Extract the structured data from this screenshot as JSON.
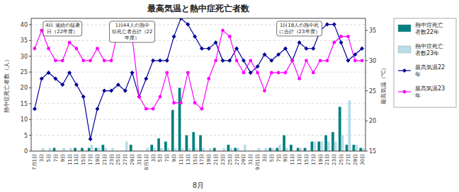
{
  "chart_data": {
    "type": "bar",
    "title": "最高気温と熱中症死亡者数",
    "x_label": "8月",
    "y_label": "熱中症死亡者数（人）",
    "y2_label": "最高気温（℃）",
    "categories": [
      "7月1日",
      "3日",
      "5日",
      "7日",
      "9日",
      "11日",
      "13日",
      "15日",
      "17日",
      "19日",
      "21日",
      "23日",
      "25日",
      "27日",
      "29日",
      "31日",
      "8月1日",
      "3日",
      "5日",
      "7日",
      "9日",
      "11日",
      "13日",
      "15日",
      "17日",
      "19日",
      "21日",
      "23日",
      "25日",
      "27日",
      "29日",
      "31日",
      "9月1日",
      "3日",
      "5日",
      "7日",
      "9日",
      "11日",
      "13日",
      "15日",
      "17日",
      "19日",
      "21日",
      "23日",
      "25日",
      "27日",
      "29日",
      "30日"
    ],
    "series": [
      {
        "name": "熱中症死亡\n者数22年",
        "type": "bar",
        "color": "#008080",
        "values": [
          0,
          0,
          0,
          1,
          0,
          0,
          1,
          1,
          1,
          1,
          2,
          0,
          0,
          0,
          2,
          0,
          0,
          2,
          4,
          3,
          13,
          20,
          5,
          6,
          5,
          0,
          1,
          0,
          2,
          1,
          0,
          0,
          0,
          0,
          1,
          1,
          5,
          2,
          1,
          1,
          3,
          3,
          5,
          6,
          14,
          2,
          2,
          1
        ]
      },
      {
        "name": "熱中症死亡\n者数23年",
        "type": "bar",
        "color": "#b8dce8",
        "values": [
          0,
          1,
          1,
          0,
          1,
          1,
          0,
          0,
          2,
          1,
          1,
          1,
          0,
          3,
          0,
          0,
          1,
          1,
          1,
          1,
          1,
          1,
          1,
          1,
          1,
          1,
          0,
          1,
          1,
          1,
          2,
          0,
          1,
          1,
          1,
          2,
          1,
          0,
          1,
          0,
          3,
          3,
          3,
          3,
          5,
          16,
          2,
          1
        ]
      },
      {
        "name": "最高気温22\n年",
        "type": "line",
        "color": "#000099",
        "marker": "diamond",
        "axis": "y2",
        "values": [
          22,
          27,
          28,
          27,
          26,
          28,
          26,
          24,
          17,
          22,
          25,
          25,
          26,
          25,
          28,
          24,
          27,
          30,
          30,
          30,
          34,
          37,
          36,
          34,
          32,
          32,
          33,
          30,
          30,
          32,
          30,
          28,
          29,
          31,
          30,
          31,
          32,
          30,
          33,
          32,
          32,
          35,
          36,
          36,
          33,
          30,
          31,
          32
        ]
      },
      {
        "name": "最高気温23\n年",
        "type": "line",
        "color": "#ff00ff",
        "marker": "circle",
        "axis": "y2",
        "values": [
          32,
          35,
          32,
          30,
          30,
          33,
          32,
          30,
          30,
          32,
          30,
          30,
          35,
          34,
          34,
          24,
          22,
          22,
          24,
          28,
          23,
          23,
          28,
          23,
          22,
          27,
          30,
          35,
          34,
          30,
          28,
          30,
          28,
          25,
          28,
          28,
          28,
          30,
          27,
          30,
          28,
          30,
          30,
          33,
          34,
          34,
          30,
          30
        ]
      }
    ],
    "ylim": [
      0,
      42
    ],
    "yticks": [
      0,
      5,
      10,
      15,
      20,
      25,
      30,
      35,
      40
    ],
    "y2lim": [
      15,
      37
    ],
    "y2ticks": [
      15,
      20,
      25,
      30,
      35
    ],
    "grid": true,
    "legend": "right",
    "annotations": [
      "4日 連続の猛暑\n日（22年度）",
      "1日44人の熱中\n症死亡者合計（22\n年度）",
      "1日18人の熱中死\nに合計（23年度）"
    ]
  }
}
